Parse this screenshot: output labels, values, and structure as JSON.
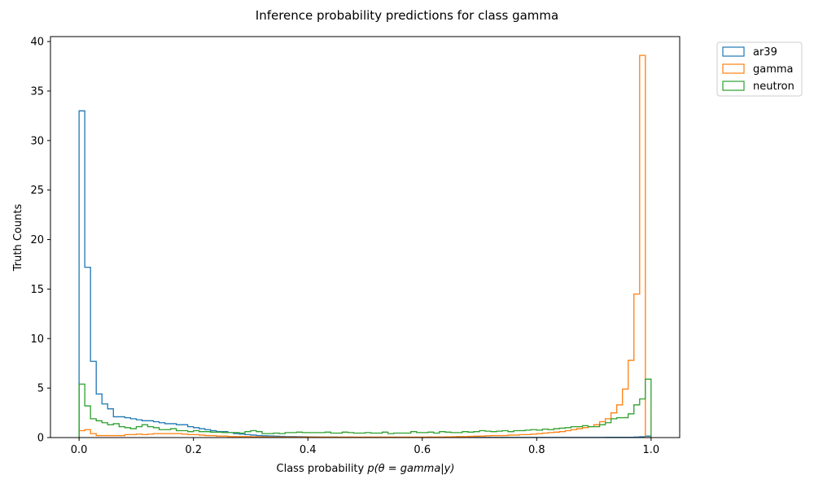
{
  "chart_data": {
    "type": "histogram",
    "title": "Inference probability predictions for class gamma",
    "xlabel_prefix": "Class probability ",
    "xlabel_math": "p(θ = gamma|y)",
    "ylabel": "Truth Counts",
    "xlim": [
      -0.05,
      1.05
    ],
    "ylim": [
      0,
      40.5
    ],
    "xticks": [
      0.0,
      0.2,
      0.4,
      0.6,
      0.8,
      1.0
    ],
    "xtick_labels": [
      "0.0",
      "0.2",
      "0.4",
      "0.6",
      "0.8",
      "1.0"
    ],
    "yticks": [
      0,
      5,
      10,
      15,
      20,
      25,
      30,
      35,
      40
    ],
    "ytick_labels": [
      "0",
      "5",
      "10",
      "15",
      "20",
      "25",
      "30",
      "35",
      "40"
    ],
    "bins": 100,
    "bin_range": [
      0,
      1
    ],
    "grid": false,
    "legend_position": "outside top-right",
    "series": [
      {
        "name": "ar39",
        "color": "#1f77b4",
        "values": [
          33.0,
          17.2,
          7.7,
          4.4,
          3.4,
          2.9,
          2.1,
          2.1,
          2.0,
          1.9,
          1.8,
          1.7,
          1.7,
          1.6,
          1.5,
          1.4,
          1.4,
          1.3,
          1.3,
          1.1,
          1.0,
          0.9,
          0.8,
          0.7,
          0.6,
          0.6,
          0.5,
          0.4,
          0.35,
          0.3,
          0.25,
          0.2,
          0.18,
          0.16,
          0.14,
          0.12,
          0.1,
          0.1,
          0.09,
          0.08,
          0.07,
          0.06,
          0.05,
          0.05,
          0.05,
          0.04,
          0.04,
          0.04,
          0.03,
          0.03,
          0.03,
          0.03,
          0.03,
          0.02,
          0.02,
          0.02,
          0.02,
          0.02,
          0.02,
          0.02,
          0.02,
          0.02,
          0.02,
          0.02,
          0.02,
          0.02,
          0.02,
          0.02,
          0.02,
          0.02,
          0.02,
          0.02,
          0.02,
          0.02,
          0.02,
          0.02,
          0.02,
          0.02,
          0.02,
          0.02,
          0.02,
          0.02,
          0.02,
          0.02,
          0.02,
          0.02,
          0.02,
          0.02,
          0.02,
          0.02,
          0.02,
          0.02,
          0.03,
          0.03,
          0.03,
          0.03,
          0.03,
          0.05,
          0.08,
          0.15
        ]
      },
      {
        "name": "gamma",
        "color": "#ff7f0e",
        "values": [
          0.7,
          0.8,
          0.4,
          0.2,
          0.2,
          0.2,
          0.2,
          0.2,
          0.3,
          0.3,
          0.35,
          0.3,
          0.35,
          0.4,
          0.4,
          0.4,
          0.4,
          0.4,
          0.35,
          0.3,
          0.3,
          0.25,
          0.2,
          0.2,
          0.15,
          0.15,
          0.1,
          0.1,
          0.1,
          0.1,
          0.08,
          0.08,
          0.06,
          0.06,
          0.05,
          0.05,
          0.05,
          0.05,
          0.05,
          0.05,
          0.05,
          0.05,
          0.05,
          0.05,
          0.05,
          0.05,
          0.05,
          0.05,
          0.05,
          0.05,
          0.05,
          0.05,
          0.05,
          0.05,
          0.05,
          0.05,
          0.05,
          0.05,
          0.05,
          0.05,
          0.05,
          0.06,
          0.06,
          0.06,
          0.07,
          0.08,
          0.1,
          0.1,
          0.12,
          0.14,
          0.15,
          0.18,
          0.2,
          0.2,
          0.2,
          0.25,
          0.25,
          0.3,
          0.3,
          0.35,
          0.4,
          0.45,
          0.5,
          0.55,
          0.6,
          0.7,
          0.8,
          0.9,
          1.0,
          1.1,
          1.3,
          1.6,
          1.9,
          2.5,
          3.3,
          4.9,
          7.8,
          14.5,
          38.6,
          0.0
        ]
      },
      {
        "name": "neutron",
        "color": "#2ca02c",
        "values": [
          5.4,
          3.2,
          1.9,
          1.7,
          1.5,
          1.3,
          1.4,
          1.1,
          1.0,
          0.9,
          1.1,
          1.3,
          1.1,
          1.0,
          0.8,
          0.8,
          0.9,
          0.7,
          0.7,
          0.6,
          0.7,
          0.6,
          0.6,
          0.55,
          0.55,
          0.5,
          0.5,
          0.5,
          0.45,
          0.6,
          0.7,
          0.6,
          0.4,
          0.4,
          0.45,
          0.4,
          0.5,
          0.5,
          0.55,
          0.5,
          0.5,
          0.5,
          0.5,
          0.55,
          0.45,
          0.45,
          0.55,
          0.5,
          0.45,
          0.45,
          0.5,
          0.45,
          0.45,
          0.55,
          0.4,
          0.45,
          0.45,
          0.45,
          0.6,
          0.5,
          0.5,
          0.55,
          0.45,
          0.6,
          0.55,
          0.5,
          0.5,
          0.6,
          0.55,
          0.6,
          0.7,
          0.65,
          0.6,
          0.65,
          0.7,
          0.6,
          0.7,
          0.7,
          0.75,
          0.8,
          0.75,
          0.85,
          0.8,
          0.9,
          0.95,
          1.0,
          1.1,
          1.1,
          1.2,
          1.1,
          1.1,
          1.3,
          1.5,
          1.9,
          2.0,
          2.0,
          2.4,
          3.3,
          3.9,
          5.9
        ]
      }
    ]
  }
}
